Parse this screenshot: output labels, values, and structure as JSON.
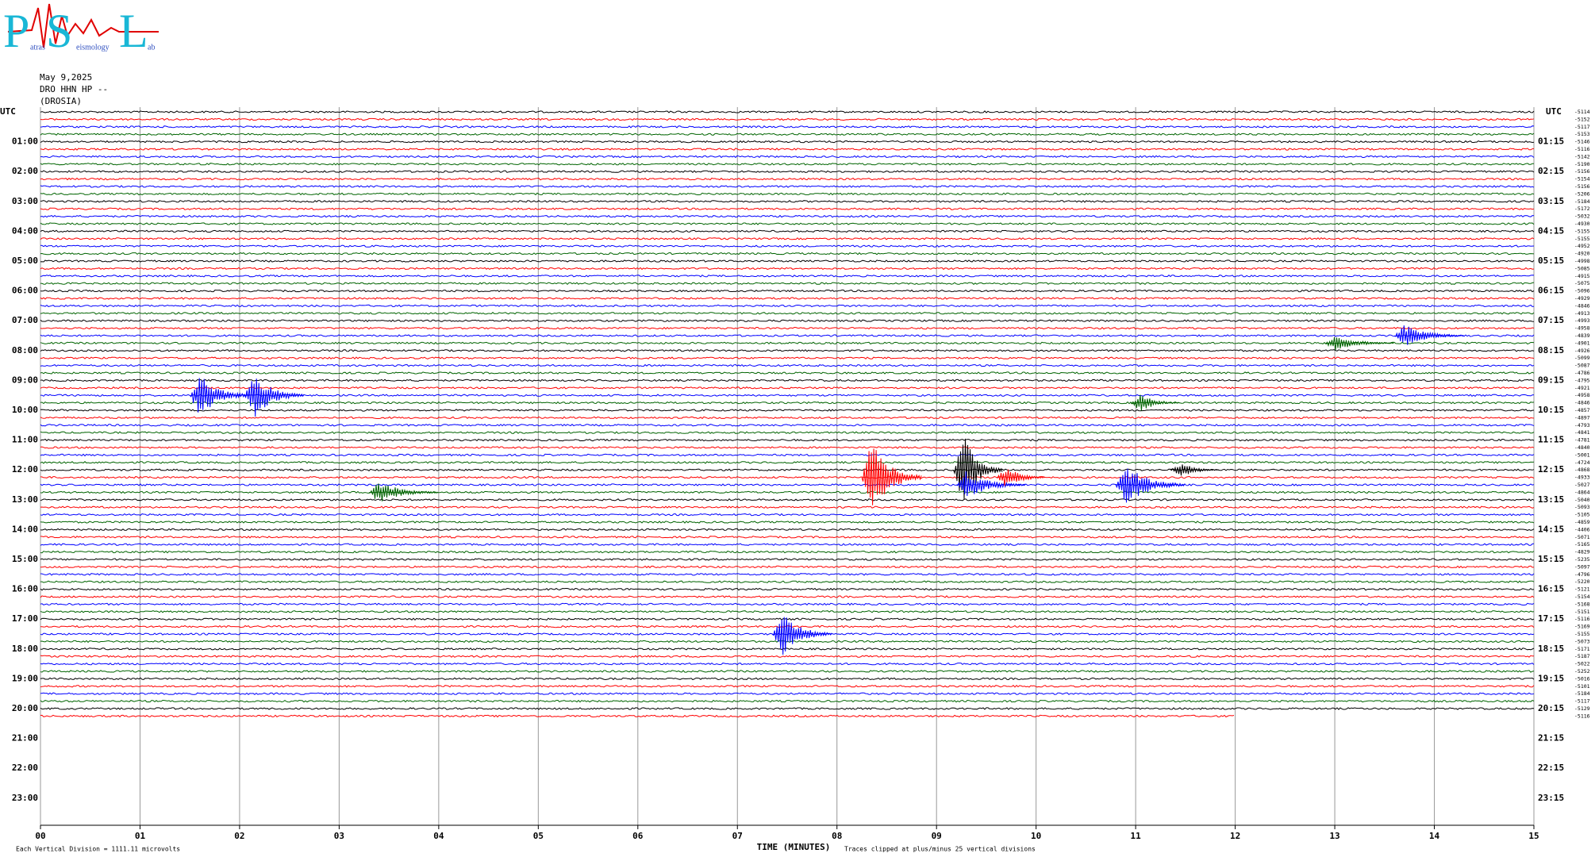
{
  "logo": {
    "letters": [
      "P",
      "S",
      "L"
    ],
    "words": [
      "atras",
      "eismology",
      "ab"
    ]
  },
  "header": {
    "date": "May 9,2025",
    "station": "DRO HHN HP --",
    "site": "(DROSIA)"
  },
  "chart_data": {
    "type": "helicorder",
    "xlabel": "TIME (MINUTES)",
    "note_left": "Each Vertical Division = 1111.11 microvolts",
    "note_right": "Traces clipped at plus/minus 25 vertical divisions",
    "left_label": "UTC",
    "right_label": "UTC",
    "xlim": [
      0,
      15
    ],
    "xticks": [
      {
        "value": 0,
        "label": "00"
      },
      {
        "value": 1,
        "label": "01"
      },
      {
        "value": 2,
        "label": "02"
      },
      {
        "value": 3,
        "label": "03"
      },
      {
        "value": 4,
        "label": "04"
      },
      {
        "value": 5,
        "label": "05"
      },
      {
        "value": 6,
        "label": "06"
      },
      {
        "value": 7,
        "label": "07"
      },
      {
        "value": 8,
        "label": "08"
      },
      {
        "value": 9,
        "label": "09"
      },
      {
        "value": 10,
        "label": "10"
      },
      {
        "value": 11,
        "label": "11"
      },
      {
        "value": 12,
        "label": "12"
      },
      {
        "value": 13,
        "label": "13"
      },
      {
        "value": 14,
        "label": "14"
      },
      {
        "value": 15,
        "label": "15"
      }
    ],
    "hour_labels": [
      "01:00",
      "02:00",
      "03:00",
      "04:00",
      "05:00",
      "06:00",
      "07:00",
      "08:00",
      "09:00",
      "10:00",
      "11:00",
      "12:00",
      "13:00",
      "14:00",
      "15:00",
      "16:00",
      "17:00",
      "18:00",
      "19:00",
      "20:00",
      "21:00",
      "22:00",
      "23:00"
    ],
    "right_hour_labels": [
      "01:15",
      "02:15",
      "03:15",
      "04:15",
      "05:15",
      "06:15",
      "07:15",
      "08:15",
      "09:15",
      "10:15",
      "11:15",
      "12:15",
      "13:15",
      "14:15",
      "15:15",
      "16:15",
      "17:15",
      "18:15",
      "19:15",
      "20:15",
      "21:15",
      "22:15",
      "23:15"
    ],
    "trace_colors": [
      "#000000",
      "#ff0000",
      "#0000ff",
      "#006400"
    ],
    "last_trace_end_minute": 12,
    "trace_offsets": [
      -5114,
      -5152,
      -5117,
      -5153,
      -5146,
      -5116,
      -5142,
      -5190,
      -5156,
      -5154,
      -5156,
      -5206,
      -5184,
      -5172,
      -5032,
      -4930,
      -5155,
      -5155,
      -4952,
      -4920,
      -4998,
      -5085,
      -4915,
      -5075,
      -5096,
      -4929,
      -4846,
      -4913,
      -4993,
      -4958,
      -4839,
      -4901,
      -4926,
      -5099,
      -5087,
      -4786,
      -4795,
      -4921,
      -4958,
      -4846,
      -4857,
      -4897,
      -4793,
      -4841,
      -4781,
      -4840,
      -5001,
      -4724,
      -4868,
      -4933,
      -5027,
      -4864,
      -5040,
      -5093,
      -5105,
      -4859,
      -4406,
      -5071,
      -5165,
      -4829,
      -5235,
      -5097,
      -4796,
      -5220,
      -5121,
      -5154,
      -5168,
      -5151,
      -5116,
      -5169,
      -5155,
      -5073,
      -5171,
      -5187,
      -5022,
      -5252,
      -5016,
      -5101,
      -5184,
      -5117,
      -5129,
      -5116
    ],
    "events": [
      {
        "trace": 38,
        "minute": 1.6,
        "amplitude": 3,
        "duration": 0.5
      },
      {
        "trace": 38,
        "minute": 2.15,
        "amplitude": 3,
        "duration": 0.5
      },
      {
        "trace": 49,
        "minute": 8.35,
        "amplitude": 5,
        "duration": 0.5
      },
      {
        "trace": 48,
        "minute": 9.27,
        "amplitude": 5,
        "duration": 0.4
      },
      {
        "trace": 50,
        "minute": 9.3,
        "amplitude": 2,
        "duration": 0.6
      },
      {
        "trace": 49,
        "minute": 9.7,
        "amplitude": 1.5,
        "duration": 0.4
      },
      {
        "trace": 50,
        "minute": 10.9,
        "amplitude": 3,
        "duration": 0.6
      },
      {
        "trace": 48,
        "minute": 11.45,
        "amplitude": 1,
        "duration": 0.4
      },
      {
        "trace": 39,
        "minute": 11.05,
        "amplitude": 1.2,
        "duration": 0.4
      },
      {
        "trace": 51,
        "minute": 3.4,
        "amplitude": 1.5,
        "duration": 0.6
      },
      {
        "trace": 70,
        "minute": 7.45,
        "amplitude": 3,
        "duration": 0.5
      },
      {
        "trace": 30,
        "minute": 13.7,
        "amplitude": 1.5,
        "duration": 0.6
      },
      {
        "trace": 31,
        "minute": 13.0,
        "amplitude": 1,
        "duration": 0.6
      }
    ]
  }
}
